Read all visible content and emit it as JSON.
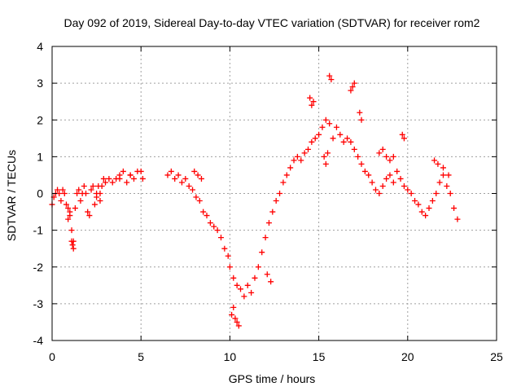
{
  "chart_data": {
    "type": "scatter",
    "title": "Day 092 of 2019, Sidereal Day-to-day VTEC variation (SDTVAR) for receiver rom2",
    "xlabel": "GPS time / hours",
    "ylabel": "SDTVAR / TECUs",
    "xlim": [
      0,
      25
    ],
    "ylim": [
      -4,
      4
    ],
    "xticks": [
      "0",
      "5",
      "10",
      "15",
      "20",
      "25"
    ],
    "yticks": [
      "-4",
      "-3",
      "-2",
      "-1",
      "0",
      "1",
      "2",
      "3",
      "4"
    ],
    "grid": true,
    "marker": "plus",
    "color": "#ff0000",
    "series": [
      {
        "name": "SDTVAR",
        "x": [
          0.0,
          0.1,
          0.2,
          0.3,
          0.4,
          0.5,
          0.6,
          0.7,
          0.8,
          0.9,
          1.0,
          1.1,
          1.2,
          1.3,
          1.4,
          1.5,
          1.6,
          1.7,
          1.8,
          1.9,
          2.0,
          2.1,
          2.2,
          2.3,
          2.4,
          2.5,
          2.6,
          2.7,
          2.8,
          2.9,
          3.0,
          3.2,
          3.4,
          3.6,
          3.8,
          4.0,
          4.2,
          4.4,
          4.6,
          4.8,
          5.0,
          5.1,
          6.5,
          6.7,
          6.9,
          7.1,
          7.3,
          7.5,
          7.7,
          7.9,
          8.1,
          8.3,
          8.5,
          8.7,
          8.9,
          9.1,
          9.3,
          9.5,
          9.7,
          9.9,
          10.0,
          10.2,
          10.4,
          10.6,
          10.8,
          11.0,
          11.2,
          11.4,
          11.6,
          11.8,
          12.0,
          12.2,
          12.4,
          12.6,
          12.8,
          13.0,
          13.2,
          13.4,
          13.6,
          13.8,
          14.0,
          14.2,
          14.4,
          14.6,
          14.8,
          15.0,
          15.2,
          15.4,
          15.6,
          15.8,
          16.0,
          16.2,
          16.4,
          16.6,
          16.8,
          17.0,
          17.2,
          17.4,
          17.6,
          17.8,
          18.0,
          18.2,
          18.4,
          18.6,
          18.8,
          19.0,
          19.2,
          19.4,
          19.6,
          19.8,
          20.0,
          20.2,
          20.4,
          20.6,
          20.8,
          21.0,
          21.2,
          21.4,
          21.6,
          21.8,
          22.0,
          22.2,
          22.4,
          22.6,
          22.8,
          10.1,
          10.2,
          10.3,
          10.4,
          10.5,
          1.1,
          1.15,
          1.2,
          15.6,
          15.7,
          16.8,
          16.9,
          17.0,
          19.7,
          19.8,
          14.5,
          14.6,
          14.7,
          15.3,
          15.4,
          15.5,
          17.3,
          17.4,
          8.0,
          8.2,
          8.4,
          12.1,
          12.3,
          0.9,
          1.0,
          2.5,
          2.7,
          3.8,
          4.4,
          21.5,
          21.7,
          22.0,
          22.3,
          18.4,
          18.6,
          18.8,
          19.0,
          19.2
        ],
        "y": [
          -0.3,
          -0.1,
          0.0,
          0.1,
          0.0,
          -0.2,
          0.1,
          0.0,
          -0.3,
          -0.7,
          -0.5,
          -1.0,
          -1.3,
          -0.4,
          0.0,
          0.1,
          -0.2,
          0.0,
          0.2,
          0.0,
          -0.5,
          -0.6,
          0.1,
          0.2,
          -0.3,
          -0.1,
          0.2,
          0.0,
          0.2,
          0.4,
          0.3,
          0.4,
          0.3,
          0.4,
          0.5,
          0.6,
          0.3,
          0.5,
          0.4,
          0.6,
          0.6,
          0.4,
          0.5,
          0.6,
          0.4,
          0.5,
          0.3,
          0.4,
          0.2,
          0.1,
          -0.1,
          -0.2,
          -0.5,
          -0.6,
          -0.8,
          -0.9,
          -1.0,
          -1.2,
          -1.5,
          -1.7,
          -2.0,
          -2.3,
          -2.5,
          -2.6,
          -2.8,
          -2.5,
          -2.7,
          -2.3,
          -2.0,
          -1.6,
          -1.2,
          -0.8,
          -0.5,
          -0.2,
          0.0,
          0.3,
          0.5,
          0.7,
          0.9,
          1.0,
          0.9,
          1.1,
          1.2,
          1.4,
          1.5,
          1.6,
          1.8,
          2.0,
          1.9,
          1.5,
          1.8,
          1.6,
          1.4,
          1.5,
          1.4,
          1.2,
          1.0,
          0.8,
          0.6,
          0.5,
          0.3,
          0.1,
          0.0,
          0.2,
          0.4,
          0.5,
          0.3,
          0.6,
          0.4,
          0.2,
          0.1,
          0.0,
          -0.2,
          -0.3,
          -0.5,
          -0.6,
          -0.4,
          -0.2,
          0.0,
          0.3,
          0.5,
          0.2,
          0.0,
          -0.4,
          -0.7,
          -3.3,
          -3.1,
          -3.4,
          -3.5,
          -3.6,
          -1.3,
          -1.4,
          -1.5,
          3.2,
          3.1,
          2.8,
          2.9,
          3.0,
          1.6,
          1.5,
          2.6,
          2.4,
          2.5,
          1.0,
          0.8,
          1.1,
          2.2,
          2.0,
          0.6,
          0.5,
          0.4,
          -2.2,
          -2.4,
          -0.4,
          -0.6,
          0.0,
          -0.2,
          0.4,
          0.5,
          0.9,
          0.8,
          0.7,
          0.5,
          1.1,
          1.2,
          1.0,
          0.9,
          1.0
        ]
      }
    ]
  }
}
